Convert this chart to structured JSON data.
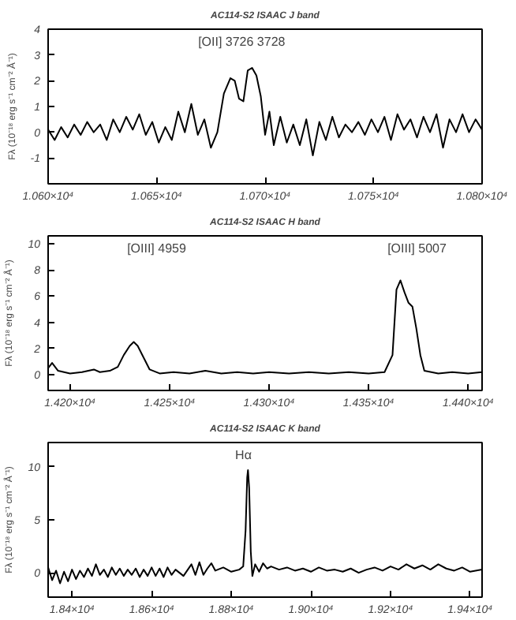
{
  "chart_data": [
    {
      "type": "line",
      "title": "AC114-S2 ISAAC J band",
      "ylabel": "Fλ (10⁻¹⁸ erg s⁻¹ cm⁻² Å⁻¹)",
      "xlim": [
        10600,
        10800
      ],
      "ylim": [
        -2,
        4
      ],
      "xticks": [
        {
          "value": 10600,
          "label": "1.060×10⁴"
        },
        {
          "value": 10650,
          "label": "1.065×10⁴"
        },
        {
          "value": 10700,
          "label": "1.070×10⁴"
        },
        {
          "value": 10750,
          "label": "1.075×10⁴"
        },
        {
          "value": 10800,
          "label": "1.080×10⁴"
        }
      ],
      "yticks": [
        -1,
        0,
        1,
        2,
        3,
        4
      ],
      "annotations": [
        "[OII] 3726  3728"
      ],
      "x": [
        10600,
        10603,
        10606,
        10609,
        10612,
        10615,
        10618,
        10621,
        10624,
        10627,
        10630,
        10633,
        10636,
        10639,
        10642,
        10645,
        10648,
        10651,
        10654,
        10657,
        10660,
        10663,
        10666,
        10669,
        10672,
        10675,
        10678,
        10681,
        10684,
        10686,
        10688,
        10690,
        10692,
        10694,
        10696,
        10698,
        10700,
        10702,
        10704,
        10707,
        10710,
        10713,
        10716,
        10719,
        10722,
        10725,
        10728,
        10731,
        10734,
        10737,
        10740,
        10743,
        10746,
        10749,
        10752,
        10755,
        10758,
        10761,
        10764,
        10767,
        10770,
        10773,
        10776,
        10779,
        10782,
        10785,
        10788,
        10791,
        10794,
        10797,
        10800
      ],
      "series": [
        {
          "color": "#000000",
          "values": [
            0.1,
            -0.3,
            0.2,
            -0.2,
            0.3,
            -0.1,
            0.4,
            0.0,
            0.3,
            -0.3,
            0.5,
            0.0,
            0.6,
            0.1,
            0.7,
            -0.1,
            0.4,
            -0.4,
            0.2,
            -0.3,
            0.8,
            0.0,
            1.1,
            -0.1,
            0.5,
            -0.6,
            0.0,
            1.5,
            2.1,
            2.0,
            1.3,
            1.2,
            2.4,
            2.5,
            2.2,
            1.4,
            -0.1,
            0.8,
            -0.5,
            0.6,
            -0.4,
            0.3,
            -0.5,
            0.5,
            -0.9,
            0.4,
            -0.3,
            0.6,
            -0.2,
            0.3,
            0.0,
            0.4,
            -0.1,
            0.5,
            0.0,
            0.6,
            -0.3,
            0.7,
            0.1,
            0.5,
            -0.2,
            0.6,
            0.0,
            0.7,
            -0.6,
            0.5,
            0.0,
            0.7,
            0.0,
            0.5,
            0.1
          ]
        }
      ]
    },
    {
      "type": "line",
      "title": "AC114-S2 ISAAC H band",
      "ylabel": "Fλ (10⁻¹⁸ erg s⁻¹ cm⁻² Å⁻¹)",
      "xlim": [
        14189,
        14407
      ],
      "ylim": [
        -1.2,
        10.6
      ],
      "xticks": [
        {
          "value": 14200,
          "label": "1.420×10⁴"
        },
        {
          "value": 14250,
          "label": "1.425×10⁴"
        },
        {
          "value": 14300,
          "label": "1.430×10⁴"
        },
        {
          "value": 14350,
          "label": "1.435×10⁴"
        },
        {
          "value": 14400,
          "label": "1.440×10⁴"
        }
      ],
      "yticks": [
        0,
        2,
        4,
        6,
        8,
        10
      ],
      "annotations": [
        "[OIII] 4959",
        "[OIII] 5007"
      ],
      "x": [
        14189,
        14191,
        14194,
        14200,
        14206,
        14212,
        14215,
        14220,
        14224,
        14227,
        14230,
        14232,
        14234,
        14237,
        14240,
        14245,
        14252,
        14260,
        14268,
        14276,
        14284,
        14292,
        14300,
        14310,
        14320,
        14330,
        14340,
        14350,
        14358,
        14362,
        14364,
        14366,
        14368,
        14370,
        14372,
        14374,
        14376,
        14378,
        14385,
        14392,
        14400,
        14407
      ],
      "series": [
        {
          "color": "#000000",
          "values": [
            0.5,
            0.9,
            0.3,
            0.1,
            0.2,
            0.4,
            0.2,
            0.3,
            0.6,
            1.5,
            2.2,
            2.5,
            2.2,
            1.3,
            0.4,
            0.1,
            0.2,
            0.1,
            0.3,
            0.1,
            0.2,
            0.1,
            0.2,
            0.1,
            0.2,
            0.1,
            0.2,
            0.1,
            0.2,
            1.5,
            6.5,
            7.2,
            6.3,
            5.5,
            5.2,
            3.5,
            1.5,
            0.3,
            0.1,
            0.2,
            0.1,
            0.2
          ]
        }
      ]
    },
    {
      "type": "line",
      "title": "AC114-S2 ISAAC K band",
      "ylabel": "Fλ (10⁻¹⁸ erg s⁻¹ cm⁻² Å⁻¹)",
      "xlim": [
        18340,
        19430
      ],
      "ylim": [
        -2.3,
        12.3
      ],
      "xticks": [
        {
          "value": 18400,
          "label": "1.84×10⁴"
        },
        {
          "value": 18600,
          "label": "1.86×10⁴"
        },
        {
          "value": 18800,
          "label": "1.88×10⁴"
        },
        {
          "value": 19000,
          "label": "1.90×10⁴"
        },
        {
          "value": 19200,
          "label": "1.92×10⁴"
        },
        {
          "value": 19400,
          "label": "1.94×10⁴"
        }
      ],
      "yticks": [
        0,
        5,
        10
      ],
      "annotations": [
        "Hα"
      ],
      "x": [
        18340,
        18350,
        18360,
        18370,
        18380,
        18390,
        18400,
        18410,
        18420,
        18430,
        18440,
        18450,
        18460,
        18470,
        18480,
        18490,
        18500,
        18510,
        18520,
        18530,
        18540,
        18550,
        18560,
        18570,
        18580,
        18590,
        18600,
        18610,
        18620,
        18630,
        18640,
        18650,
        18660,
        18680,
        18700,
        18710,
        18720,
        18730,
        18740,
        18750,
        18760,
        18780,
        18800,
        18820,
        18830,
        18836,
        18840,
        18842,
        18845,
        18849,
        18853,
        18860,
        18870,
        18880,
        18890,
        18900,
        18920,
        18940,
        18960,
        18980,
        19000,
        19020,
        19040,
        19060,
        19080,
        19100,
        19120,
        19140,
        19160,
        19180,
        19200,
        19220,
        19240,
        19260,
        19280,
        19300,
        19320,
        19340,
        19360,
        19380,
        19400,
        19430
      ],
      "series": [
        {
          "color": "#000000",
          "values": [
            0.5,
            -0.7,
            0.2,
            -1.0,
            0.1,
            -0.8,
            0.3,
            -0.6,
            0.2,
            -0.4,
            0.4,
            -0.3,
            0.8,
            -0.2,
            0.3,
            -0.4,
            0.5,
            -0.2,
            0.4,
            -0.3,
            0.3,
            -0.2,
            0.4,
            -0.4,
            0.3,
            -0.3,
            0.5,
            -0.3,
            0.4,
            -0.4,
            0.5,
            -0.2,
            0.3,
            -0.3,
            0.8,
            -0.2,
            1.0,
            -0.2,
            0.4,
            0.9,
            0.2,
            0.5,
            0.1,
            0.3,
            0.6,
            4.0,
            9.0,
            9.7,
            8.0,
            2.0,
            -0.3,
            0.8,
            0.1,
            0.9,
            0.4,
            0.6,
            0.3,
            0.5,
            0.2,
            0.4,
            0.1,
            0.5,
            0.2,
            0.3,
            0.1,
            0.4,
            0.0,
            0.3,
            0.5,
            0.2,
            0.6,
            0.3,
            0.8,
            0.4,
            0.7,
            0.3,
            0.8,
            0.4,
            0.2,
            0.5,
            0.1,
            0.3
          ]
        }
      ]
    }
  ]
}
